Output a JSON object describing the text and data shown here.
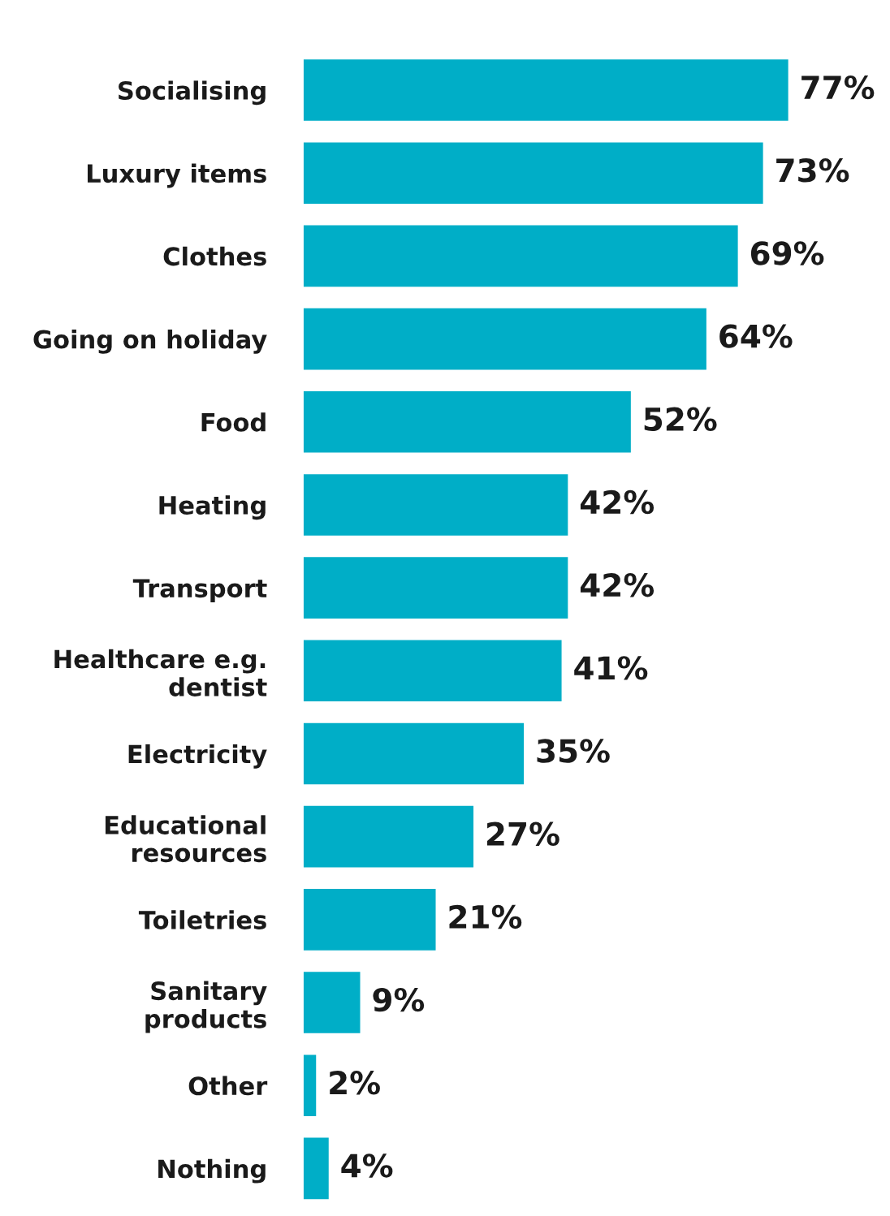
{
  "chart_data": {
    "type": "bar",
    "orientation": "horizontal",
    "categories": [
      "Socialising",
      "Luxury items",
      "Clothes",
      "Going on holiday",
      "Food",
      "Heating",
      "Transport",
      "Healthcare e.g.\ndentist",
      "Electricity",
      "Educational\nresources",
      "Toiletries",
      "Sanitary\nproducts",
      "Other",
      "Nothing"
    ],
    "values": [
      77,
      73,
      69,
      64,
      52,
      42,
      42,
      41,
      35,
      27,
      21,
      9,
      2,
      4
    ],
    "color": "#00aec7",
    "value_labels": [
      "77%",
      "73%",
      "69%",
      "64%",
      "52%",
      "42%",
      "42%",
      "41%",
      "35%",
      "27%",
      "21%",
      "9%",
      "2%",
      "4%"
    ],
    "grid": false,
    "legend": false
  }
}
